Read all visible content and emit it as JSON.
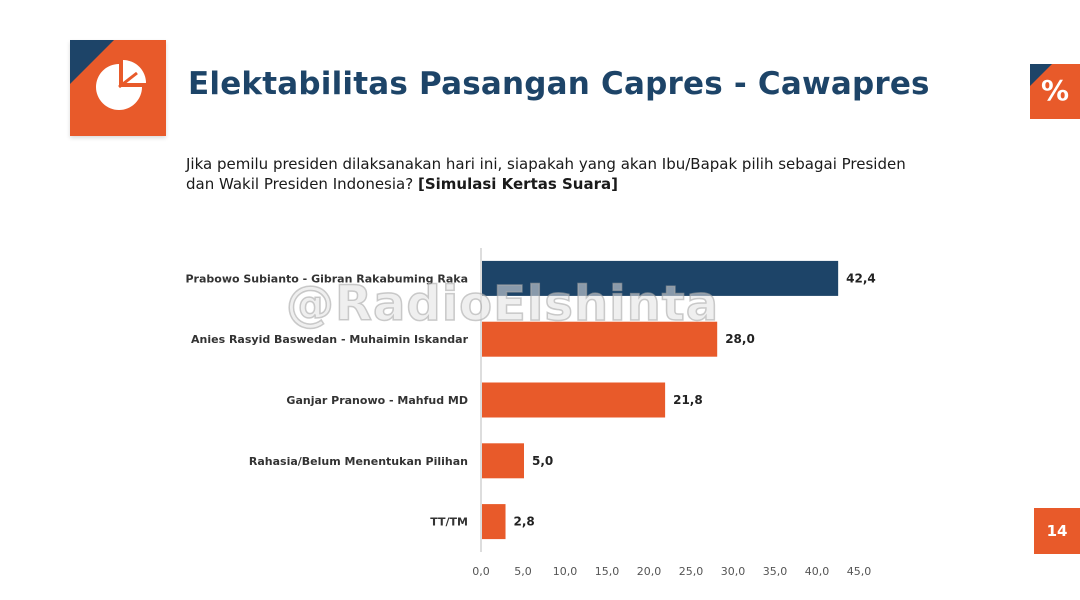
{
  "slide": {
    "title": "Elektabilitas Pasangan Capres - Cawapres",
    "question_line1": "Jika pemilu presiden  dilaksanakan hari ini, siapakah yang akan Ibu/Bapak pilih sebagai Presiden",
    "question_line2": "dan Wakil  Presiden Indonesia? ",
    "question_bold": "[Simulasi Kertas Suara]",
    "percent_badge": "%",
    "page_number": "14",
    "watermark": "@RadioElshinta",
    "logo_icon": "pie-chart-icon"
  },
  "colors": {
    "navy": "#1d4468",
    "orange": "#e85a2a"
  },
  "chart_data": {
    "type": "bar",
    "orientation": "horizontal",
    "categories": [
      "Prabowo Subianto - Gibran Rakabuming Raka",
      "Anies Rasyid Baswedan - Muhaimin Iskandar",
      "Ganjar Pranowo - Mahfud MD",
      "Rahasia/Belum Menentukan Pilihan",
      "TT/TM"
    ],
    "values": [
      42.4,
      28.0,
      21.8,
      5.0,
      2.8
    ],
    "value_labels": [
      "42,4",
      "28,0",
      "21,8",
      "5,0",
      "2,8"
    ],
    "bar_colors": [
      "#1d4468",
      "#e85a2a",
      "#e85a2a",
      "#e85a2a",
      "#e85a2a"
    ],
    "xlim": [
      0,
      45
    ],
    "ticks": [
      0,
      5,
      10,
      15,
      20,
      25,
      30,
      35,
      40,
      45
    ],
    "tick_labels": [
      "0,0",
      "5,0",
      "10,0",
      "15,0",
      "20,0",
      "25,0",
      "30,0",
      "35,0",
      "40,0",
      "45,0"
    ],
    "title": "",
    "xlabel": "",
    "ylabel": "",
    "grid": false,
    "legend": "none"
  }
}
